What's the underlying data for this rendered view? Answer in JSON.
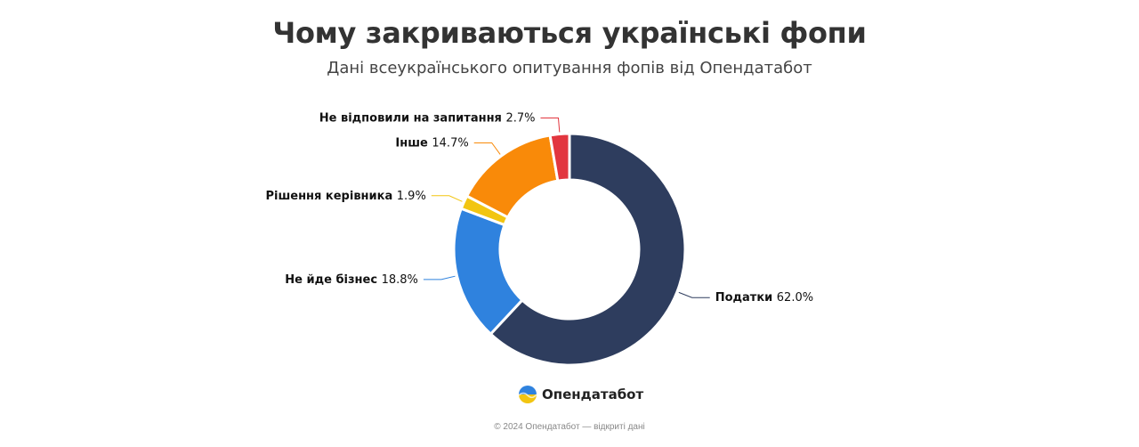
{
  "header": {
    "title": "Чому закриваються українські фопи",
    "subtitle": "Дані всеукраїнського опитування фопів від Опендатабот"
  },
  "chart_data": {
    "type": "pie",
    "title": "Чому закриваються українські фопи",
    "subtitle": "Дані всеукраїнського опитування фопів від Опендатабот",
    "donut": true,
    "unit": "%",
    "slices": [
      {
        "label": "Податки",
        "value": 62.0,
        "value_label": "62.0%",
        "color": "#2E3D5E"
      },
      {
        "label": "Не йде бізнес",
        "value": 18.8,
        "value_label": "18.8%",
        "color": "#2F82DE"
      },
      {
        "label": "Рішення керівника",
        "value": 1.9,
        "value_label": "1.9%",
        "color": "#F2C511"
      },
      {
        "label": "Інше",
        "value": 14.7,
        "value_label": "14.7%",
        "color": "#F98A09"
      },
      {
        "label": "Не відповили на запитання",
        "value": 2.7,
        "value_label": "2.7%",
        "color": "#E2363F"
      }
    ]
  },
  "branding": {
    "name": "Опендатабот",
    "logo_icon": "opendatabot-logo-icon",
    "logo_colors": {
      "top": "#2F82DE",
      "bottom": "#F2C511"
    }
  },
  "footer": {
    "text": "© 2024 Опендатабот — відкриті дані"
  }
}
